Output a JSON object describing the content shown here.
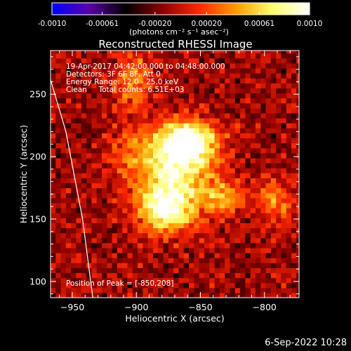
{
  "colorbar": {
    "tick_labels": [
      "-0.0010",
      "-0.00061",
      "-0.00020",
      "0.00020",
      "0.00061",
      "0.0010"
    ],
    "tick_values": [
      -0.001,
      -0.00061,
      -0.0002,
      0.0002,
      0.00061,
      0.001
    ],
    "range": [
      -0.001,
      0.001
    ],
    "units_label": "(photons cm⁻² s⁻¹ asec⁻²)",
    "colors": [
      "#0000ff",
      "#5a00a8",
      "#000000",
      "#8c0000",
      "#ff2800",
      "#ff9a00",
      "#ffff6e",
      "#ffffff"
    ]
  },
  "stamp": "6-Sep-2022 10:28",
  "chart_data": {
    "type": "heatmap",
    "title": "Reconstructed RHESSI Image",
    "xlabel": "Heliocentric X (arcsec)",
    "ylabel": "Heliocentric Y (arcsec)",
    "xlim": [
      -967,
      -773
    ],
    "ylim": [
      87,
      285
    ],
    "x_ticks": [
      -950,
      -900,
      -850,
      -800
    ],
    "y_ticks": [
      100,
      150,
      200,
      250
    ],
    "annotations": [
      "19-Apr-2017 04:42:00.000 to 04:48:00.000",
      "Detectors: 3F 6F 8F, Att 0",
      "Energy Range: 12.0 - 25.0 keV",
      "Clean     Total counts: 6.51E+03"
    ],
    "peak_label": "Position of Peak = [-850,208]",
    "peak": [
      -850,
      208
    ],
    "grid": false,
    "limb": [
      [
        -981,
        310
      ],
      [
        -955,
        220
      ],
      [
        -942,
        150
      ],
      [
        -934,
        87
      ]
    ],
    "sources": [
      {
        "x": -860,
        "y": 212,
        "sx": 16,
        "sy": 12,
        "amp": 0.001
      },
      {
        "x": -872,
        "y": 195,
        "sx": 22,
        "sy": 20,
        "amp": 0.00055
      },
      {
        "x": -878,
        "y": 157,
        "sx": 14,
        "sy": 12,
        "amp": 0.0008
      },
      {
        "x": -872,
        "y": 175,
        "sx": 20,
        "sy": 22,
        "amp": 0.0004
      },
      {
        "x": -833,
        "y": 168,
        "sx": 14,
        "sy": 10,
        "amp": 0.0005
      },
      {
        "x": -790,
        "y": 165,
        "sx": 10,
        "sy": 12,
        "amp": 0.00045
      },
      {
        "x": -903,
        "y": 262,
        "sx": 10,
        "sy": 16,
        "amp": 0.0005
      },
      {
        "x": -905,
        "y": 205,
        "sx": 12,
        "sy": 14,
        "amp": 0.00025
      }
    ]
  }
}
